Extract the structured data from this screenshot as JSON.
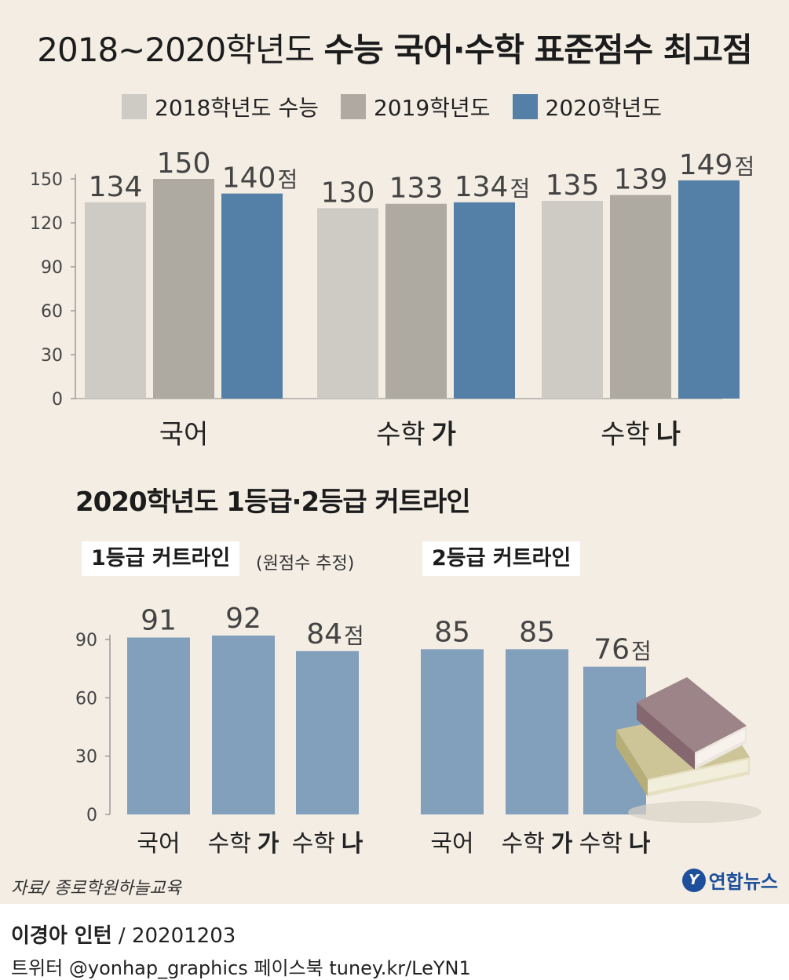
{
  "title": {
    "light": "2018~2020학년도",
    "bold": "수능 국어·수학 표준점수 최고점"
  },
  "legend": [
    {
      "label": "2018학년도 수능",
      "color": "#cdcbc4"
    },
    {
      "label": "2019학년도",
      "color": "#aeaaa2"
    },
    {
      "label": "2020학년도",
      "color": "#547fa6"
    }
  ],
  "chart_data": [
    {
      "type": "bar",
      "title": "2018~2020학년도 수능 국어·수학 표준점수 최고점",
      "categories": [
        {
          "name": "국어",
          "bold_suffix": ""
        },
        {
          "name": "수학",
          "bold_suffix": "가"
        },
        {
          "name": "수학",
          "bold_suffix": "나"
        }
      ],
      "series": [
        {
          "name": "2018학년도 수능",
          "values": [
            134,
            130,
            135
          ],
          "color": "#cdcbc4"
        },
        {
          "name": "2019학년도",
          "values": [
            150,
            133,
            139
          ],
          "color": "#aeaaa2"
        },
        {
          "name": "2020학년도",
          "values": [
            140,
            134,
            149
          ],
          "color": "#547fa6"
        }
      ],
      "unit_suffix": "점",
      "yticks": [
        "0",
        "30",
        "60",
        "90",
        "120",
        "150"
      ],
      "ylim": [
        0,
        150
      ]
    },
    {
      "type": "bar",
      "title": "1등급 커트라인",
      "note": "(원점수 추정)",
      "categories": [
        {
          "name": "국어",
          "bold_suffix": ""
        },
        {
          "name": "수학",
          "bold_suffix": "가"
        },
        {
          "name": "수학",
          "bold_suffix": "나"
        }
      ],
      "values": [
        91,
        92,
        84
      ],
      "color": "#829fbb",
      "unit_suffix": "점",
      "yticks": [
        "0",
        "30",
        "60",
        "90"
      ],
      "ylim": [
        0,
        90
      ]
    },
    {
      "type": "bar",
      "title": "2등급 커트라인",
      "categories": [
        {
          "name": "국어",
          "bold_suffix": ""
        },
        {
          "name": "수학",
          "bold_suffix": "가"
        },
        {
          "name": "수학",
          "bold_suffix": "나"
        }
      ],
      "values": [
        85,
        85,
        76
      ],
      "color": "#829fbb",
      "unit_suffix": "점",
      "ylim": [
        0,
        90
      ]
    }
  ],
  "subtitle": "2020학년도 1등급·2등급 커트라인",
  "source": "자료/ 종로학원하늘교육",
  "logo": {
    "mark": "Y",
    "text": "연합뉴스"
  },
  "credit": {
    "name": "이경아 인턴",
    "date": " / 20201203"
  },
  "social": "트위터 @yonhap_graphics  페이스북 tuney.kr/LeYN1"
}
